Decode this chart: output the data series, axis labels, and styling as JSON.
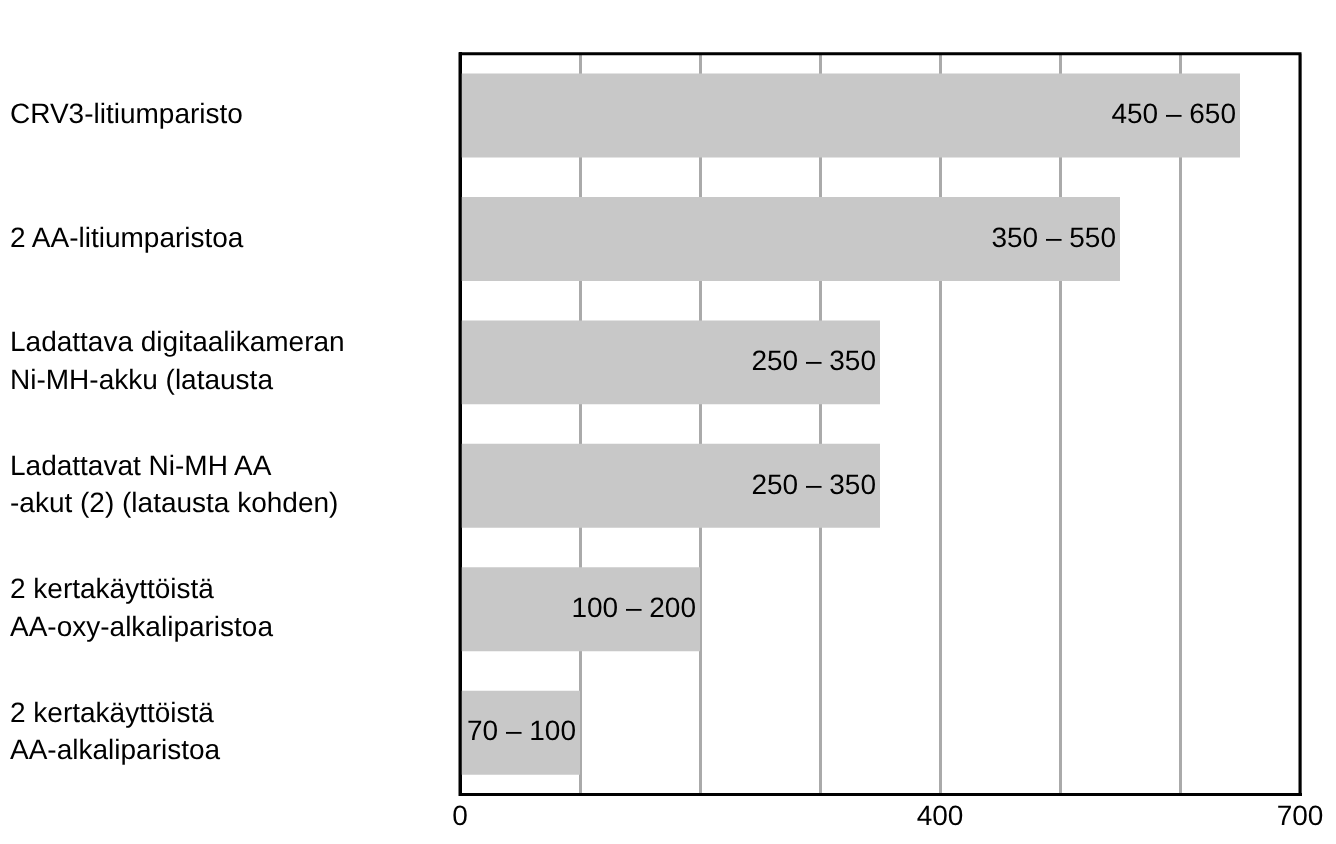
{
  "chart_data": {
    "type": "bar",
    "orientation": "horizontal",
    "categories": [
      "CRV3-litiumparisto",
      "2 AA-litiumparistoa",
      "Ladattava digitaalikameran\nNi-MH-akku (latausta",
      "Ladattavat Ni-MH AA\n-akut (2) (latausta kohden)",
      "2 kertakäyttöistä\nAA-oxy-alkaliparistoa",
      "2 kertakäyttöistä\nAA-alkaliparistoa"
    ],
    "values": [
      650,
      550,
      350,
      350,
      200,
      100
    ],
    "annotations": [
      {
        "text": "450 – 650",
        "x": 650,
        "y": "CRV3-litiumparisto"
      },
      {
        "text": "350 – 550",
        "x": 550,
        "y": "2 AA-litiumparistoa"
      },
      {
        "text": "250 – 350",
        "x": 350,
        "y": "Ladattava digitaalikameran\nNi-MH-akku (latausta"
      },
      {
        "text": "250 – 350",
        "x": 350,
        "y": "Ladattavat Ni-MH AA\n-akut (2) (latausta kohden)"
      },
      {
        "text": "100 – 200",
        "x": 200,
        "y": "2 kertakäyttöistä\nAA-oxy-alkaliparistoa"
      },
      {
        "text": "70 – 100",
        "x": 100,
        "y": "2 kertakäyttöistä\nAA-alkaliparistoa"
      }
    ],
    "color": "#c8c8c8",
    "xlim": [
      0,
      700
    ],
    "xticks": [
      0,
      {
        "value": 100,
        "label": null
      },
      {
        "value": 200,
        "label": null
      },
      {
        "value": 300,
        "label": null
      },
      400,
      {
        "value": 500,
        "label": null
      },
      {
        "value": 600,
        "label": null
      },
      700
    ],
    "grid": "x"
  }
}
